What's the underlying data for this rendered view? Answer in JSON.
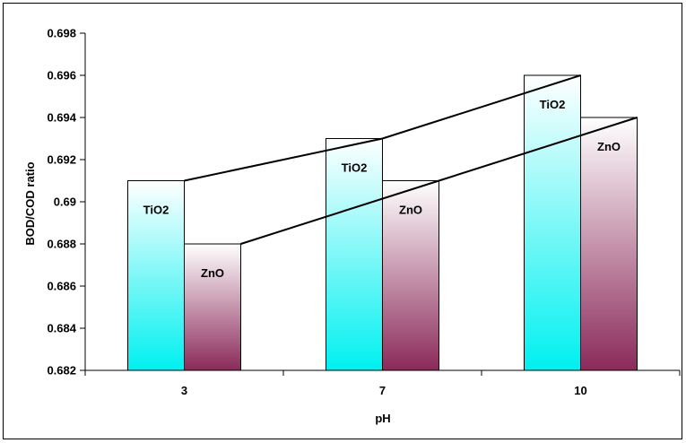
{
  "chart_data": {
    "type": "bar",
    "title": "",
    "xlabel": "pH",
    "ylabel": "BOD/COD ratio",
    "categories": [
      "3",
      "7",
      "10"
    ],
    "ylim": [
      0.682,
      0.698
    ],
    "yticks": [
      0.682,
      0.684,
      0.686,
      0.688,
      0.69,
      0.692,
      0.694,
      0.696,
      0.698
    ],
    "ytick_labels": [
      "0.682",
      "0.684",
      "0.686",
      "0.688",
      "0.69",
      "0.692",
      "0.694",
      "0.696",
      "0.698"
    ],
    "grid": false,
    "legend": "none",
    "series": [
      {
        "label": "TiO2",
        "values": [
          0.691,
          0.693,
          0.696
        ],
        "gradient": [
          "#ffffff",
          "#00f0f0"
        ],
        "trend_line": true
      },
      {
        "label": "ZnO",
        "values": [
          0.688,
          0.691,
          0.694
        ],
        "gradient": [
          "#ffffff",
          "#8b2a5a"
        ],
        "trend_line": true
      }
    ]
  },
  "colors": {
    "background": "#ffffff",
    "border": "#000000",
    "trend_line": "#000000"
  }
}
